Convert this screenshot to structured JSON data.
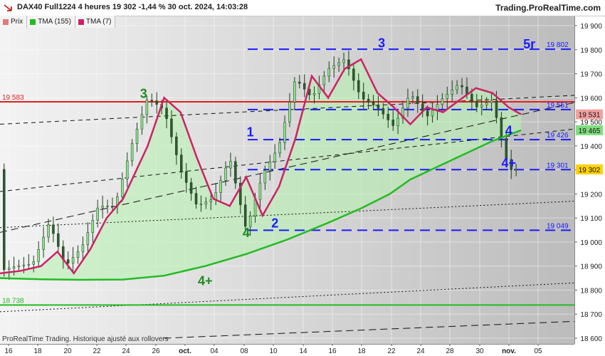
{
  "header": {
    "title": "DAX40 Full1224 4 heures 19 302 -1,44 % 30 oct. 2024, 14:03:28",
    "brand": "Trading.ProRealTime.com"
  },
  "legend": [
    {
      "label": "Prix",
      "color": "#e07a7a"
    },
    {
      "label": "TMA (155)",
      "color": "#22bb22"
    },
    {
      "label": "TMA (7)",
      "color": "#cc2266"
    }
  ],
  "footer": "ProRealTime Trading. Historique ajusté aux rollovers",
  "chart_data": {
    "type": "line",
    "instrument": "DAX40",
    "timeframe": "4 heures",
    "last_price": 19302,
    "change_pct": -1.44,
    "x_axis": {
      "ticks": [
        "16",
        "18",
        "20",
        "22",
        "24",
        "26",
        "oct.",
        "04",
        "08",
        "10",
        "14",
        "16",
        "18",
        "22",
        "24",
        "28",
        "30",
        "nov.",
        "05"
      ]
    },
    "y_axis": {
      "range": [
        18600,
        19900
      ],
      "ticks": [
        "18 600",
        "18 700",
        "18 800",
        "18 900",
        "19 000",
        "19 100",
        "19 200",
        "19 300",
        "19 400",
        "19 500",
        "19 600",
        "19 700",
        "19 800",
        "19 900"
      ]
    },
    "series": [
      {
        "name": "TMA (155)",
        "color": "#22bb22",
        "x": [
          0,
          10,
          20,
          30,
          40,
          50,
          60,
          70,
          80,
          88,
          95,
          100,
          105,
          110,
          115,
          120,
          127
        ],
        "y": [
          18850,
          18845,
          18843,
          18844,
          18860,
          18900,
          18950,
          19010,
          19080,
          19140,
          19200,
          19260,
          19300,
          19340,
          19380,
          19420,
          19465
        ]
      },
      {
        "name": "TMA (7)",
        "color": "#cc2266",
        "x": [
          0,
          5,
          10,
          14,
          18,
          22,
          26,
          30,
          36,
          40,
          44,
          48,
          52,
          56,
          60,
          64,
          68,
          72,
          76,
          80,
          84,
          88,
          92,
          96,
          100,
          104,
          108,
          112,
          116,
          120,
          124,
          127
        ],
        "y": [
          18870,
          18880,
          18900,
          18960,
          18870,
          18970,
          19100,
          19180,
          19400,
          19600,
          19540,
          19350,
          19180,
          19150,
          19270,
          19110,
          19230,
          19430,
          19690,
          19600,
          19720,
          19760,
          19620,
          19560,
          19490,
          19560,
          19540,
          19590,
          19640,
          19620,
          19560,
          19531
        ]
      },
      {
        "name": "Prix",
        "color": "#1f4f1f",
        "x": [
          0,
          4,
          8,
          12,
          16,
          20,
          24,
          28,
          32,
          36,
          40,
          44,
          48,
          52,
          56,
          60,
          64,
          68,
          72,
          76,
          80,
          84,
          88,
          92,
          96,
          100,
          104,
          108,
          112,
          116,
          120,
          124,
          127
        ],
        "y": [
          18880,
          18900,
          18910,
          19080,
          18900,
          18980,
          19150,
          19150,
          19400,
          19600,
          19550,
          19300,
          19150,
          19180,
          19350,
          19050,
          19280,
          19400,
          19680,
          19600,
          19720,
          19760,
          19600,
          19560,
          19480,
          19620,
          19520,
          19600,
          19660,
          19560,
          19590,
          19300,
          19302
        ]
      }
    ],
    "horizontal_levels": [
      {
        "value": 19583,
        "label": "19 583",
        "color": "#e02020",
        "style": "solid"
      },
      {
        "value": 18738,
        "label": "18 738",
        "color": "#22bb22",
        "style": "solid"
      },
      {
        "value": 19802,
        "label": "19 802",
        "color": "#1a1aff",
        "style": "dashed"
      },
      {
        "value": 19551,
        "label": "19 551",
        "color": "#1a1aff",
        "style": "dashed"
      },
      {
        "value": 19426,
        "label": "19 426",
        "color": "#1a1aff",
        "style": "dashed"
      },
      {
        "value": 19301,
        "label": "19 301",
        "color": "#1a1aff",
        "style": "dashed"
      },
      {
        "value": 19049,
        "label": "19 049",
        "color": "#1a1aff",
        "style": "dashed"
      }
    ],
    "price_tags": [
      {
        "value": 19531,
        "label": "19 531",
        "bg": "#f2a0a0"
      },
      {
        "value": 19465,
        "label": "19 465",
        "bg": "#7fdc7f"
      },
      {
        "value": 19302,
        "label": "19 302",
        "bg": "#ffd200"
      }
    ],
    "trend_lines": [
      {
        "x0": 0,
        "y0": 19490,
        "x1": 140,
        "y1": 19610,
        "style": "dashed"
      },
      {
        "x0": 0,
        "y0": 19210,
        "x1": 140,
        "y1": 19470,
        "style": "dashed"
      },
      {
        "x0": 0,
        "y0": 19060,
        "x1": 140,
        "y1": 19170,
        "style": "dotted"
      },
      {
        "x0": 0,
        "y0": 18710,
        "x1": 140,
        "y1": 18830,
        "style": "dotted"
      },
      {
        "x0": 0,
        "y0": 19040,
        "x1": 140,
        "y1": 19580,
        "style": "longdash"
      },
      {
        "x0": 40,
        "y0": 18600,
        "x1": 140,
        "y1": 18670,
        "style": "longdash"
      }
    ],
    "wave_labels": [
      {
        "text": "3",
        "x": 35,
        "y": 19600,
        "color": "#1e8c1e"
      },
      {
        "text": "4+",
        "x": 50,
        "y": 18820,
        "color": "#1e8c1e"
      },
      {
        "text": "4",
        "x": 60,
        "y": 19020,
        "color": "#1e8c1e"
      },
      {
        "text": "1",
        "x": 61,
        "y": 19440,
        "color": "#1a1aff"
      },
      {
        "text": "2",
        "x": 67,
        "y": 19060,
        "color": "#1a1aff"
      },
      {
        "text": "3",
        "x": 93,
        "y": 19810,
        "color": "#1a1aff"
      },
      {
        "text": "5r",
        "x": 129,
        "y": 19805,
        "color": "#1a1aff"
      },
      {
        "text": "4",
        "x": 124,
        "y": 19445,
        "color": "#1a1aff"
      },
      {
        "text": "4+",
        "x": 124,
        "y": 19310,
        "color": "#1a1aff"
      }
    ]
  }
}
